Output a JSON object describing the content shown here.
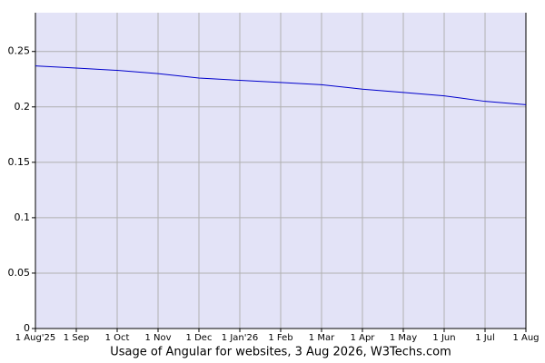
{
  "chart_data": {
    "type": "line",
    "title": "Usage of Angular for websites, 3 Aug 2026, W3Techs.com",
    "categories": [
      "1 Aug'25",
      "1 Sep",
      "1 Oct",
      "1 Nov",
      "1 Dec",
      "1 Jan'26",
      "1 Feb",
      "1 Mar",
      "1 Apr",
      "1 May",
      "1 Jun",
      "1 Jul",
      "1 Aug"
    ],
    "series": [
      {
        "name": "Angular",
        "color": "#0000cc",
        "values": [
          0.237,
          0.235,
          0.233,
          0.23,
          0.226,
          0.224,
          0.222,
          0.22,
          0.216,
          0.213,
          0.21,
          0.205,
          0.202
        ]
      }
    ],
    "ylim": [
      0,
      0.285
    ],
    "yticks": [
      0,
      0.05,
      0.1,
      0.15,
      0.2,
      0.25
    ],
    "grid": true,
    "background": "#e3e3f7"
  }
}
